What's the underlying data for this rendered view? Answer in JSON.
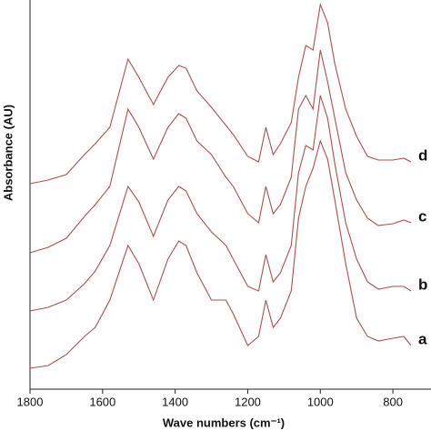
{
  "chart_data": {
    "type": "line",
    "xlabel": "Wave numbers (cm⁻¹)",
    "ylabel": "Absorbance (AU)",
    "x": [
      1800,
      1750,
      1700,
      1650,
      1620,
      1580,
      1530,
      1500,
      1460,
      1420,
      1390,
      1370,
      1340,
      1300,
      1260,
      1240,
      1200,
      1170,
      1150,
      1130,
      1110,
      1080,
      1060,
      1040,
      1020,
      1000,
      980,
      960,
      930,
      900,
      870,
      840,
      800,
      770,
      750
    ],
    "series": [
      {
        "name": "a",
        "color": "#a8524e",
        "values": [
          23,
          26,
          38,
          58,
          68,
          98,
          158,
          138,
          98,
          143,
          163,
          158,
          128,
          98,
          98,
          83,
          48,
          58,
          98,
          68,
          78,
          108,
          188,
          223,
          243,
          273,
          253,
          208,
          138,
          78,
          58,
          53,
          56,
          58,
          48
        ]
      },
      {
        "name": "b",
        "color": "#a8524e",
        "values": [
          86,
          90,
          98,
          116,
          130,
          158,
          223,
          206,
          168,
          208,
          223,
          218,
          193,
          173,
          158,
          143,
          113,
          108,
          148,
          118,
          128,
          158,
          238,
          268,
          263,
          323,
          298,
          248,
          183,
          143,
          118,
          110,
          113,
          113,
          108
        ]
      },
      {
        "name": "c",
        "color": "#a8524e",
        "values": [
          150,
          156,
          166,
          190,
          203,
          223,
          308,
          288,
          253,
          288,
          303,
          298,
          273,
          258,
          233,
          223,
          193,
          183,
          223,
          193,
          203,
          233,
          308,
          323,
          308,
          373,
          338,
          298,
          238,
          208,
          188,
          180,
          182,
          186,
          183
        ]
      },
      {
        "name": "d",
        "color": "#a8524e",
        "values": [
          226,
          230,
          236,
          258,
          270,
          288,
          363,
          343,
          313,
          343,
          356,
          353,
          328,
          310,
          290,
          280,
          256,
          250,
          288,
          258,
          270,
          293,
          343,
          378,
          373,
          423,
          403,
          358,
          308,
          278,
          256,
          252,
          252,
          254,
          250
        ]
      }
    ],
    "xlim": [
      1800,
      695
    ],
    "xticks": [
      1800,
      1600,
      1400,
      1200,
      1000,
      800
    ],
    "ylim": [
      0,
      428
    ],
    "grid": false
  }
}
